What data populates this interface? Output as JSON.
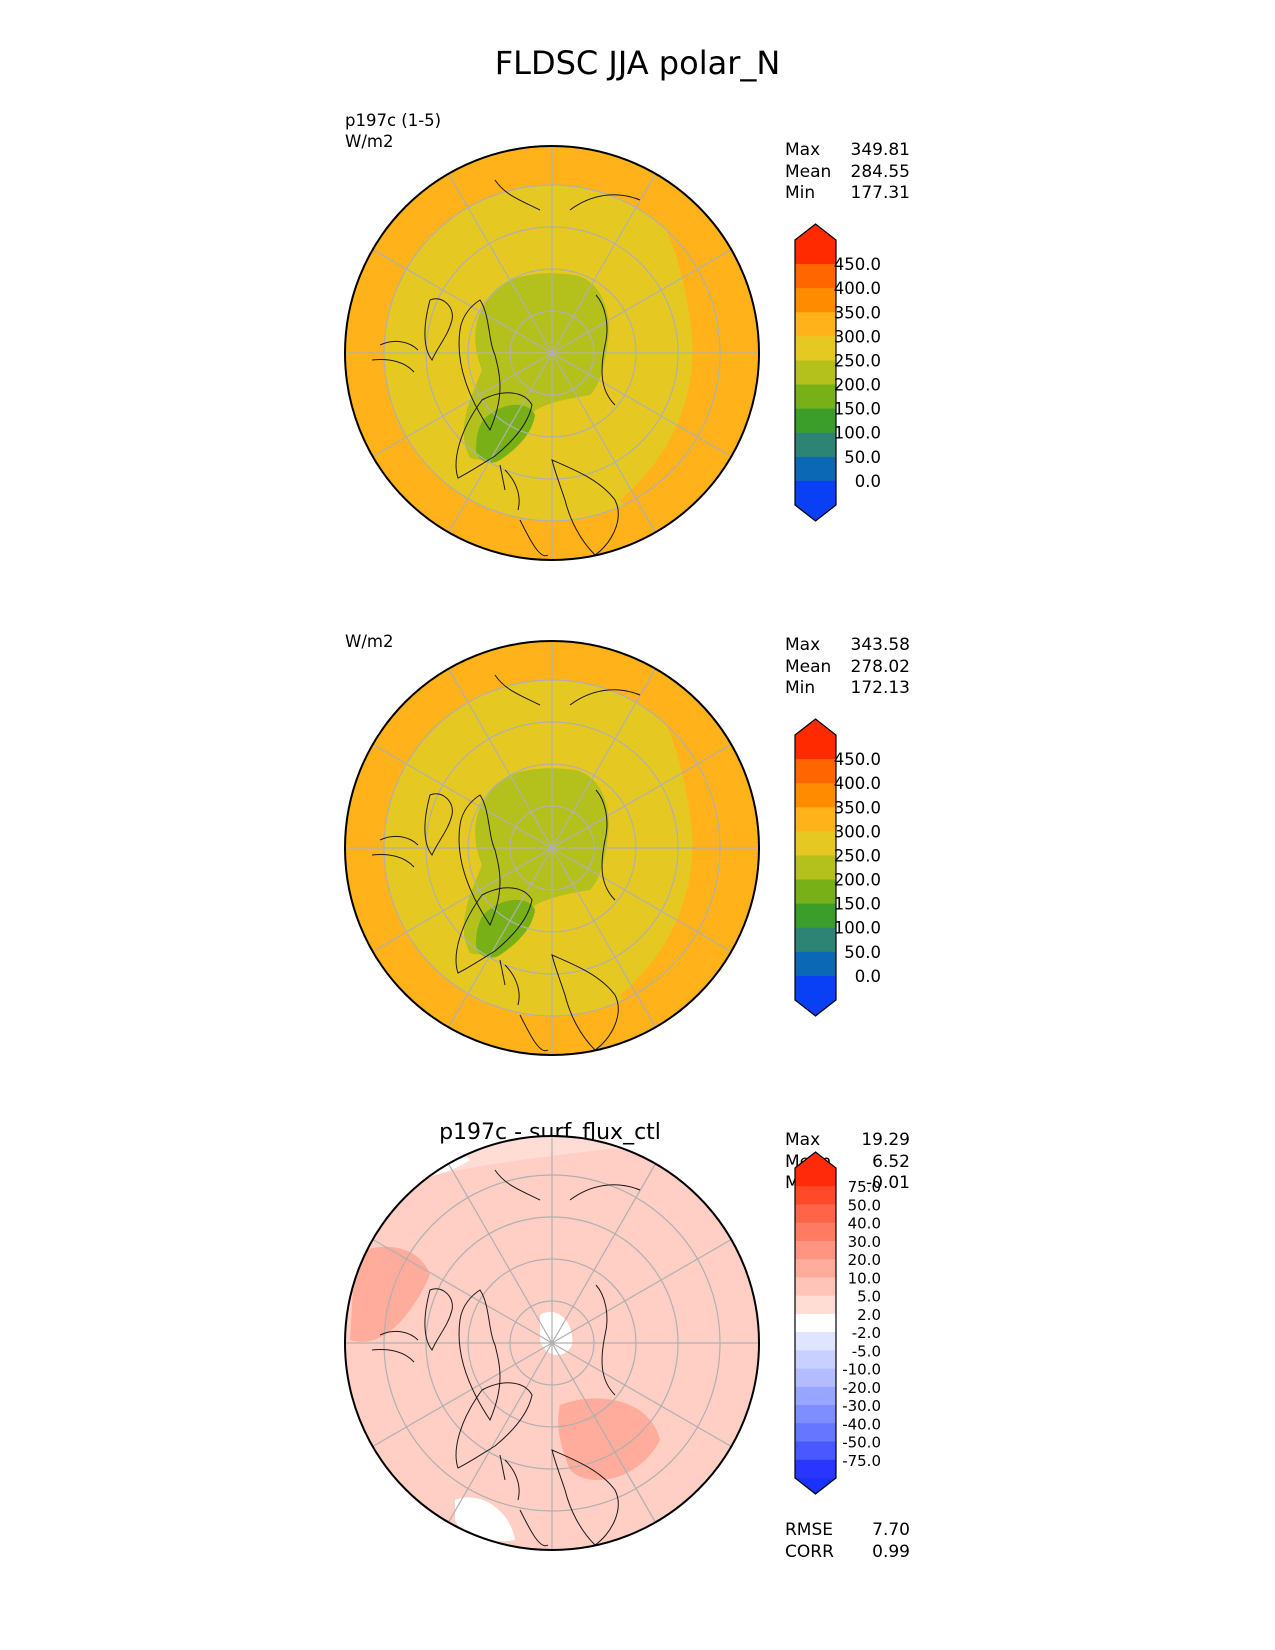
{
  "title": "FLDSC JJA polar_N",
  "panels": [
    {
      "id": "test",
      "title": "",
      "left_label": "p197c (1-5)",
      "units": "W/m2",
      "stats": [
        {
          "label": "Max",
          "value": "349.81"
        },
        {
          "label": "Mean",
          "value": "284.55"
        },
        {
          "label": "Min",
          "value": "177.31"
        }
      ],
      "colorbar": {
        "ticks": [
          "450.0",
          "400.0",
          "350.0",
          "300.0",
          "250.0",
          "200.0",
          "150.0",
          "100.0",
          "50.0",
          "0.0"
        ],
        "colors": [
          "#ff2a00",
          "#ff6600",
          "#ff8c00",
          "#ffb21a",
          "#e6c822",
          "#b4c01c",
          "#78b018",
          "#3c9e2a",
          "#2e8474",
          "#0a68b4",
          "#0a40f5"
        ],
        "bottom_extend_color": "#0a40f5"
      },
      "map": {
        "background": "#e6c822",
        "regions": [
          {
            "color": "#ffb21a",
            "role": "outer-ring"
          },
          {
            "color": "#b4c01c",
            "role": "arctic-ocean"
          },
          {
            "color": "#78b018",
            "role": "greenland"
          }
        ]
      },
      "footer_stats": []
    },
    {
      "id": "reference",
      "title": "",
      "left_label": "",
      "units": "W/m2",
      "stats": [
        {
          "label": "Max",
          "value": "343.58"
        },
        {
          "label": "Mean",
          "value": "278.02"
        },
        {
          "label": "Min",
          "value": "172.13"
        }
      ],
      "colorbar": {
        "ticks": [
          "450.0",
          "400.0",
          "350.0",
          "300.0",
          "250.0",
          "200.0",
          "150.0",
          "100.0",
          "50.0",
          "0.0"
        ],
        "colors": [
          "#ff2a00",
          "#ff6600",
          "#ff8c00",
          "#ffb21a",
          "#e6c822",
          "#b4c01c",
          "#78b018",
          "#3c9e2a",
          "#2e8474",
          "#0a68b4",
          "#0a40f5"
        ],
        "bottom_extend_color": "#0a40f5"
      },
      "map": {
        "background": "#e6c822",
        "regions": [
          {
            "color": "#ffb21a",
            "role": "outer-ring"
          },
          {
            "color": "#b4c01c",
            "role": "arctic-ocean"
          },
          {
            "color": "#78b018",
            "role": "greenland"
          }
        ]
      },
      "footer_stats": []
    },
    {
      "id": "difference",
      "title": "p197c - surf_flux_ctl",
      "left_label": "",
      "units": "",
      "stats": [
        {
          "label": "Max",
          "value": "19.29"
        },
        {
          "label": "Mean",
          "value": "6.52"
        },
        {
          "label": "Min",
          "value": "-0.01"
        }
      ],
      "colorbar": {
        "ticks": [
          "75.0",
          "50.0",
          "40.0",
          "30.0",
          "20.0",
          "10.0",
          "5.0",
          "2.0",
          "-2.0",
          "-5.0",
          "-10.0",
          "-20.0",
          "-30.0",
          "-40.0",
          "-50.0",
          "-75.0"
        ],
        "colors": [
          "#ff2a0a",
          "#ff4a2a",
          "#ff6448",
          "#ff7c62",
          "#ff9480",
          "#ffac9c",
          "#ffc4b8",
          "#ffdcd4",
          "#ffffff",
          "#dfe4ff",
          "#c8d0ff",
          "#b2bcff",
          "#98a6ff",
          "#7e8eff",
          "#6676ff",
          "#4a58ff",
          "#2a36ff"
        ],
        "bottom_extend_color": "#1a32ff"
      },
      "map": {
        "background": "#ffdcd4",
        "regions": [
          {
            "color": "#ffc4b8",
            "role": "outer-ring"
          },
          {
            "color": "#ffffff",
            "role": "pole-patch"
          },
          {
            "color": "#ffac9c",
            "role": "scandinavia"
          }
        ]
      },
      "footer_stats": [
        {
          "label": "RMSE",
          "value": "7.70"
        },
        {
          "label": "CORR",
          "value": "0.99"
        }
      ]
    }
  ]
}
